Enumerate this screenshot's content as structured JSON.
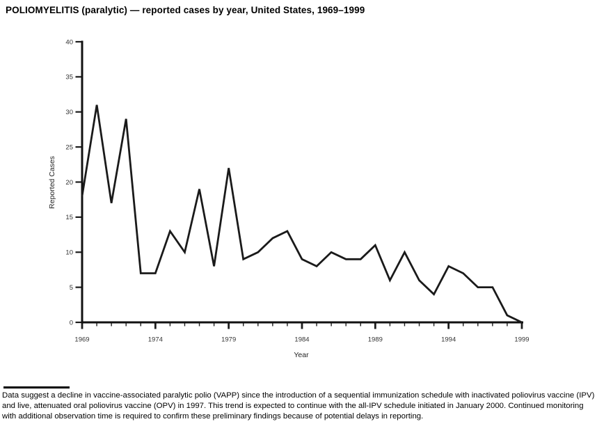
{
  "title": "POLIOMYELITIS (paralytic) — reported cases by year, United States, 1969–1999",
  "chart_data": {
    "type": "line",
    "title": "POLIOMYELITIS (paralytic) — reported cases by year, United States, 1969–1999",
    "xlabel": "Year",
    "ylabel": "Reported Cases",
    "x": [
      1969,
      1970,
      1971,
      1972,
      1973,
      1974,
      1975,
      1976,
      1977,
      1978,
      1979,
      1980,
      1981,
      1982,
      1983,
      1984,
      1985,
      1986,
      1987,
      1988,
      1989,
      1990,
      1991,
      1992,
      1993,
      1994,
      1995,
      1996,
      1997,
      1998,
      1999
    ],
    "values": [
      18,
      31,
      17,
      29,
      7,
      7,
      13,
      10,
      19,
      8,
      22,
      9,
      10,
      12,
      13,
      9,
      8,
      10,
      9,
      9,
      11,
      6,
      10,
      6,
      4,
      8,
      7,
      5,
      5,
      1,
      0
    ],
    "ylim": [
      0,
      40
    ],
    "y_ticks": [
      0,
      5,
      10,
      15,
      20,
      25,
      30,
      35,
      40
    ],
    "x_major_ticks": [
      1969,
      1974,
      1979,
      1984,
      1989,
      1994,
      1999
    ],
    "grid": false,
    "legend_position": "none",
    "line_color": "#1a1a1a"
  },
  "footnote": "Data suggest a decline in vaccine-associated paralytic polio (VAPP) since the introduction of a sequential immunization schedule with inactivated poliovirus vaccine (IPV) and live, attenuated oral poliovirus vaccine (OPV) in 1997. This trend is expected to continue with the all-IPV schedule initiated in January 2000. Continued monitoring with additional observation time is required to confirm these preliminary findings because of potential delays in reporting."
}
